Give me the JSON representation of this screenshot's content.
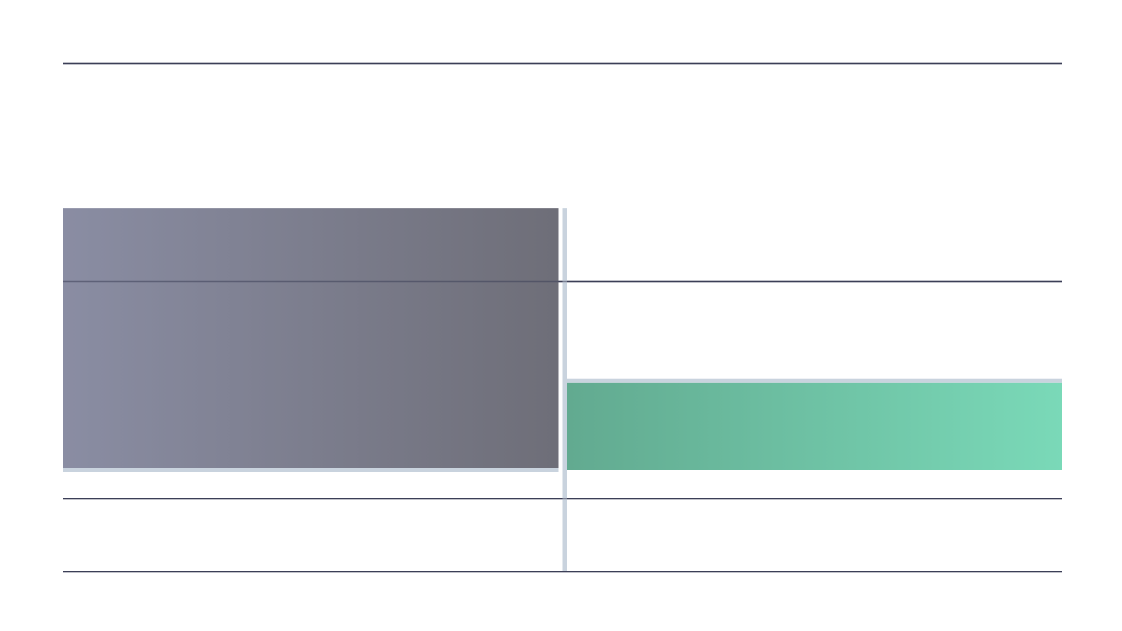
{
  "chart_data": {
    "type": "bar",
    "chart_subtype": "waterfall",
    "title": "",
    "xlabel": "",
    "ylabel": "",
    "categories": [
      "",
      ""
    ],
    "values": [
      -36,
      12
    ],
    "ylim": [
      -50,
      20
    ],
    "gridlines": [
      -50,
      -40,
      -10,
      20
    ],
    "grid": true,
    "legend": "none",
    "colors": {
      "decrease_start": "#8a8da3",
      "decrease_end": "#6e6e78",
      "increase_start": "#62aa90",
      "increase_end": "#7ad9b8",
      "connector": "#c9d3de",
      "gridline": "#3d3f57"
    }
  }
}
